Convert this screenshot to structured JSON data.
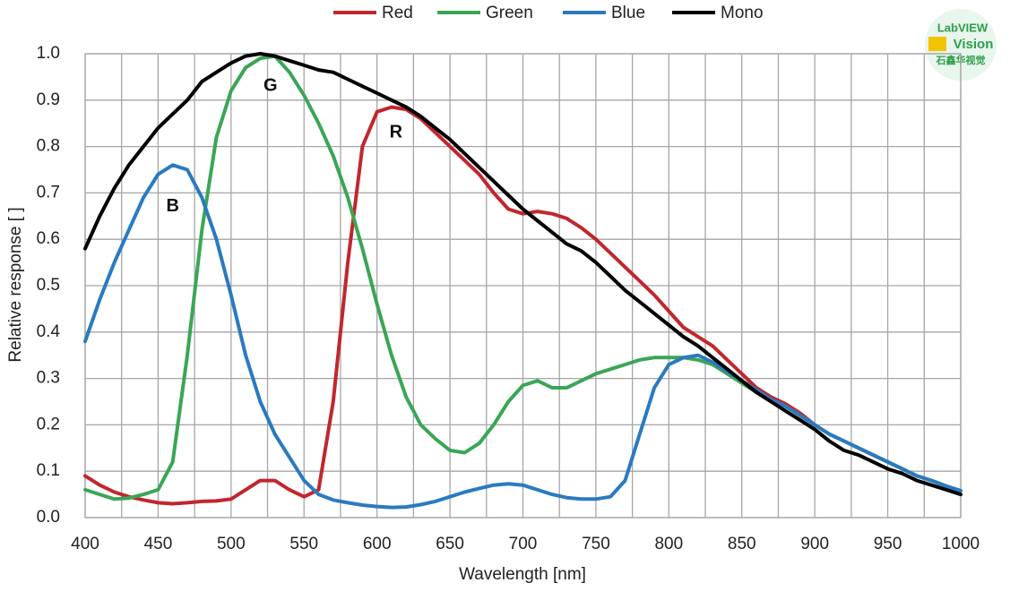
{
  "chart_data": {
    "type": "line",
    "x_label": "Wavelength [nm]",
    "y_label": "Relative response [ ]",
    "x": [
      400,
      410,
      420,
      430,
      440,
      450,
      460,
      470,
      480,
      490,
      500,
      510,
      520,
      530,
      540,
      550,
      560,
      570,
      580,
      590,
      600,
      610,
      620,
      630,
      640,
      650,
      660,
      670,
      680,
      690,
      700,
      710,
      720,
      730,
      740,
      750,
      760,
      770,
      780,
      790,
      800,
      810,
      820,
      830,
      840,
      850,
      860,
      870,
      880,
      890,
      900,
      910,
      920,
      930,
      940,
      950,
      960,
      970,
      980,
      990,
      1000
    ],
    "series": [
      {
        "name": "Red",
        "color": "#c0272d",
        "values": [
          0.09,
          0.07,
          0.055,
          0.045,
          0.038,
          0.032,
          0.03,
          0.032,
          0.035,
          0.036,
          0.04,
          0.06,
          0.08,
          0.08,
          0.06,
          0.045,
          0.06,
          0.25,
          0.55,
          0.8,
          0.875,
          0.885,
          0.88,
          0.86,
          0.83,
          0.8,
          0.77,
          0.74,
          0.7,
          0.665,
          0.655,
          0.66,
          0.655,
          0.645,
          0.625,
          0.6,
          0.57,
          0.54,
          0.51,
          0.48,
          0.445,
          0.41,
          0.39,
          0.37,
          0.34,
          0.31,
          0.28,
          0.26,
          0.245,
          0.225,
          0.2,
          0.18,
          0.165,
          0.15,
          0.135,
          0.12,
          0.105,
          0.09,
          0.08,
          0.068,
          0.058
        ]
      },
      {
        "name": "Green",
        "color": "#3aa655",
        "values": [
          0.06,
          0.05,
          0.04,
          0.042,
          0.05,
          0.06,
          0.12,
          0.35,
          0.62,
          0.82,
          0.92,
          0.97,
          0.99,
          0.995,
          0.96,
          0.91,
          0.85,
          0.78,
          0.69,
          0.58,
          0.46,
          0.35,
          0.26,
          0.2,
          0.17,
          0.145,
          0.14,
          0.16,
          0.2,
          0.25,
          0.285,
          0.295,
          0.28,
          0.28,
          0.295,
          0.31,
          0.32,
          0.33,
          0.34,
          0.345,
          0.345,
          0.345,
          0.34,
          0.33,
          0.31,
          0.29,
          0.27,
          0.255,
          0.24,
          0.22,
          0.2,
          0.18,
          0.165,
          0.15,
          0.135,
          0.12,
          0.105,
          0.09,
          0.08,
          0.068,
          0.058
        ]
      },
      {
        "name": "Blue",
        "color": "#2a7ac0",
        "values": [
          0.38,
          0.47,
          0.55,
          0.62,
          0.69,
          0.74,
          0.76,
          0.75,
          0.69,
          0.6,
          0.48,
          0.35,
          0.25,
          0.18,
          0.13,
          0.08,
          0.05,
          0.038,
          0.032,
          0.027,
          0.024,
          0.022,
          0.023,
          0.028,
          0.035,
          0.045,
          0.055,
          0.063,
          0.07,
          0.073,
          0.07,
          0.06,
          0.05,
          0.043,
          0.04,
          0.04,
          0.045,
          0.08,
          0.18,
          0.28,
          0.33,
          0.345,
          0.35,
          0.335,
          0.315,
          0.295,
          0.275,
          0.255,
          0.24,
          0.22,
          0.2,
          0.18,
          0.165,
          0.15,
          0.135,
          0.12,
          0.105,
          0.09,
          0.08,
          0.068,
          0.058
        ]
      },
      {
        "name": "Mono",
        "color": "#000000",
        "values": [
          0.58,
          0.65,
          0.71,
          0.76,
          0.8,
          0.84,
          0.87,
          0.9,
          0.94,
          0.96,
          0.98,
          0.995,
          1.0,
          0.995,
          0.985,
          0.975,
          0.965,
          0.96,
          0.945,
          0.93,
          0.915,
          0.9,
          0.885,
          0.865,
          0.84,
          0.815,
          0.785,
          0.755,
          0.725,
          0.695,
          0.665,
          0.64,
          0.615,
          0.59,
          0.575,
          0.55,
          0.52,
          0.49,
          0.465,
          0.44,
          0.415,
          0.39,
          0.37,
          0.345,
          0.32,
          0.295,
          0.27,
          0.25,
          0.23,
          0.21,
          0.19,
          0.165,
          0.145,
          0.135,
          0.12,
          0.105,
          0.095,
          0.08,
          0.07,
          0.06,
          0.05
        ]
      }
    ],
    "annotations": [
      {
        "text": "G",
        "x": 527,
        "y": 0.93
      },
      {
        "text": "R",
        "x": 613,
        "y": 0.83
      },
      {
        "text": "B",
        "x": 460,
        "y": 0.67
      }
    ],
    "xlim": [
      400,
      1000
    ],
    "ylim": [
      0,
      1
    ],
    "xticks": [
      400,
      450,
      500,
      550,
      600,
      650,
      700,
      750,
      800,
      850,
      900,
      950,
      1000
    ],
    "xgrid": [
      400,
      425,
      450,
      475,
      500,
      525,
      550,
      575,
      600,
      625,
      650,
      675,
      700,
      725,
      750,
      775,
      800,
      825,
      850,
      875,
      900,
      925,
      950,
      975,
      1000
    ],
    "yticks": [
      {
        "value": 0,
        "label": "0.0"
      },
      0.1,
      0.2,
      0.3,
      0.4,
      0.5,
      0.6,
      0.7,
      0.8,
      0.9,
      {
        "value": 1,
        "label": "1.0"
      }
    ],
    "grid": true,
    "legend": "top"
  },
  "watermark": {
    "lines": [
      "LabVIEW",
      "Vision",
      "石鑫华视觉"
    ]
  }
}
